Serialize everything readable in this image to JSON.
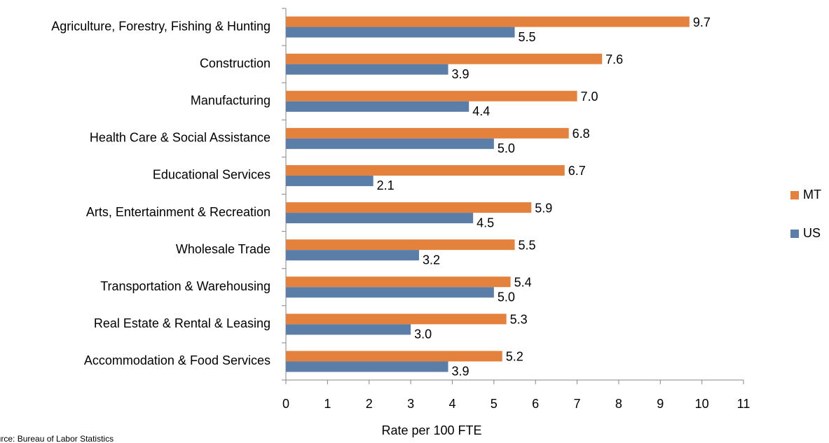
{
  "chart_data": {
    "type": "bar",
    "orientation": "horizontal",
    "categories": [
      "Agriculture, Forestry, Fishing & Hunting",
      "Construction",
      "Manufacturing",
      "Health Care & Social Assistance",
      "Educational Services",
      "Arts, Entertainment & Recreation",
      "Wholesale Trade",
      "Transportation & Warehousing",
      "Real Estate & Rental & Leasing",
      "Accommodation & Food Services"
    ],
    "series": [
      {
        "name": "MT",
        "color": "#e3813d",
        "values": [
          9.7,
          7.6,
          7.0,
          6.8,
          6.7,
          5.9,
          5.5,
          5.4,
          5.3,
          5.2
        ],
        "value_labels": [
          "9.7",
          "7.6",
          "7.0",
          "6.8",
          "6.7",
          "5.9",
          "5.5",
          "5.4",
          "5.3",
          "5.2"
        ]
      },
      {
        "name": "US",
        "color": "#5b7ea9",
        "values": [
          5.5,
          3.9,
          4.4,
          5.0,
          2.1,
          4.5,
          3.2,
          5.0,
          3.0,
          3.9
        ],
        "value_labels": [
          "5.5",
          "3.9",
          "4.4",
          "5.0",
          "2.1",
          "4.5",
          "3.2",
          "5.0",
          "3.0",
          "3.9"
        ]
      }
    ],
    "xlabel": "Rate per 100 FTE",
    "xlim": [
      0,
      11
    ],
    "xticks": [
      0,
      1,
      2,
      3,
      4,
      5,
      6,
      7,
      8,
      9,
      10,
      11
    ],
    "legend": "right",
    "source": "Source: Bureau of Labor Statistics"
  }
}
